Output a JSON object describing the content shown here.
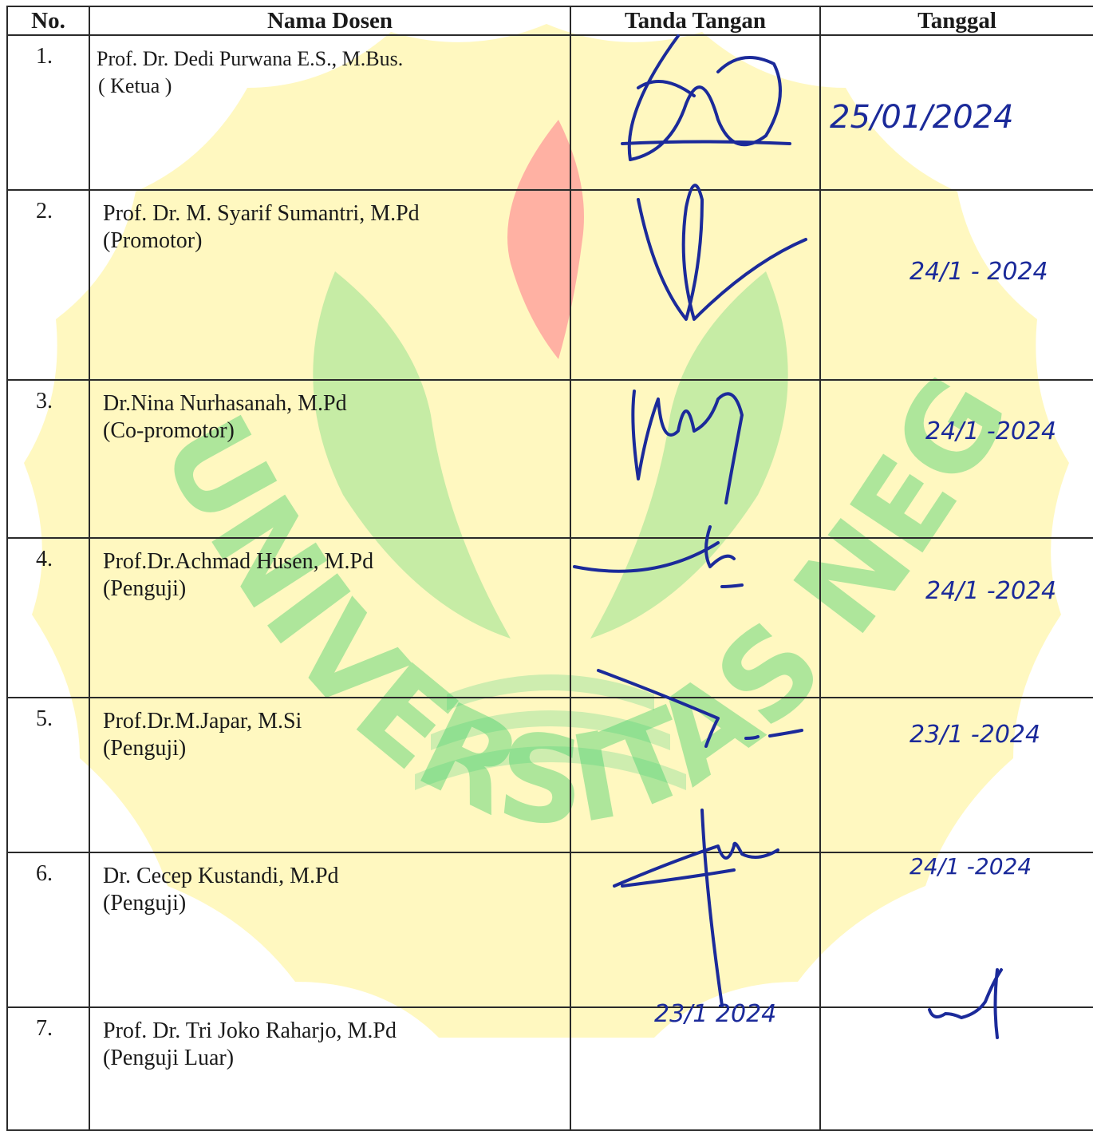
{
  "table": {
    "headers": {
      "no": "No.",
      "name": "Nama Dosen",
      "signature": "Tanda Tangan",
      "date": "Tanggal"
    },
    "rows": [
      {
        "no": "1.",
        "name": "Prof. Dr. Dedi Purwana E.S., M.Bus.",
        "role": "( Ketua )",
        "date": "25/01/2024"
      },
      {
        "no": "2.",
        "name": "Prof. Dr. M. Syarif Sumantri, M.Pd",
        "role": "(Promotor)",
        "date": "24/1 - 2024"
      },
      {
        "no": "3.",
        "name": "Dr.Nina Nurhasanah, M.Pd",
        "role": "(Co-promotor)",
        "date": "24/1 -2024"
      },
      {
        "no": "4.",
        "name": "Prof.Dr.Achmad Husen, M.Pd",
        "role": "(Penguji)",
        "date": "24/1 -2024"
      },
      {
        "no": "5.",
        "name": "Prof.Dr.M.Japar, M.Si",
        "role": "(Penguji)",
        "date": "23/1 -2024"
      },
      {
        "no": "6.",
        "name": "Dr. Cecep Kustandi, M.Pd",
        "role": "(Penguji)",
        "date": "24/1 -2024"
      },
      {
        "no": "7.",
        "name": "Prof. Dr. Tri Joko Raharjo, M.Pd",
        "role": "(Penguji Luar)",
        "date": "23/1 2024"
      }
    ]
  },
  "watermark": {
    "text": "UNIVERSITAS NEGERI JAKARTA",
    "colors": {
      "yellow": "#fff4a8",
      "green": "#3fcf6a",
      "red": "#ff8a8a"
    }
  },
  "ink_color": "#1b2a9a"
}
